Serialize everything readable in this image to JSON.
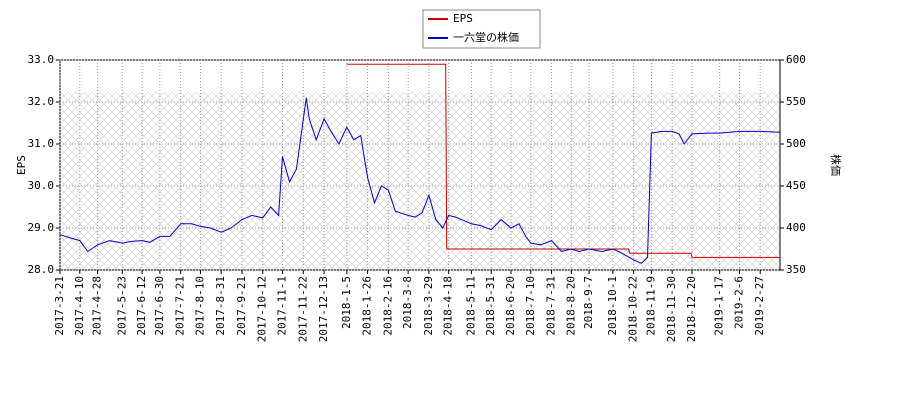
{
  "chart_data": {
    "type": "line",
    "ylabel": "EPS",
    "y2label": "株価",
    "xlim": [
      "2017-3-21",
      "2019-3-19"
    ],
    "xticks": [
      "2017-3-21",
      "2017-4-10",
      "2017-4-28",
      "2017-5-23",
      "2017-6-12",
      "2017-6-30",
      "2017-7-21",
      "2017-8-10",
      "2017-8-31",
      "2017-9-21",
      "2017-10-12",
      "2017-11-1",
      "2017-11-22",
      "2017-12-13",
      "2018-1-5",
      "2018-1-26",
      "2018-2-16",
      "2018-3-8",
      "2018-3-29",
      "2018-4-18",
      "2018-5-11",
      "2018-5-31",
      "2018-6-20",
      "2018-7-10",
      "2018-7-31",
      "2018-8-20",
      "2018-9-7",
      "2018-10-1",
      "2018-10-22",
      "2018-11-9",
      "2018-11-30",
      "2018-12-20",
      "2019-1-17",
      "2019-2-6",
      "2019-2-27"
    ],
    "ylim": [
      28.0,
      33.0
    ],
    "yticks": [
      {
        "value": 28,
        "label": "28.0"
      },
      {
        "value": 29,
        "label": "29.0"
      },
      {
        "value": 30,
        "label": "30.0"
      },
      {
        "value": 31,
        "label": "31.0"
      },
      {
        "value": 32,
        "label": "32.0"
      },
      {
        "value": 33,
        "label": "33.0"
      }
    ],
    "y2lim": [
      350,
      600
    ],
    "y2ticks": [
      350,
      400,
      450,
      500,
      550,
      600
    ],
    "grid": true,
    "legend": "top",
    "series": [
      {
        "name": "EPS",
        "color": "#cc0000",
        "axis": "y",
        "x": [
          "2018-1-5",
          "2018-4-15",
          "2018-4-16",
          "2018-10-17",
          "2018-10-18",
          "2018-12-19",
          "2018-12-20",
          "2019-3-19"
        ],
        "values": [
          32.9,
          32.9,
          28.5,
          28.5,
          28.4,
          28.4,
          28.3,
          28.3
        ]
      },
      {
        "name": "一六堂の株価",
        "color": "#0000cc",
        "axis": "y2",
        "x": [
          "2017-3-21",
          "2017-4-1",
          "2017-4-10",
          "2017-4-18",
          "2017-4-28",
          "2017-5-10",
          "2017-5-23",
          "2017-6-1",
          "2017-6-12",
          "2017-6-20",
          "2017-6-30",
          "2017-7-10",
          "2017-7-21",
          "2017-8-1",
          "2017-8-10",
          "2017-8-20",
          "2017-8-31",
          "2017-9-10",
          "2017-9-21",
          "2017-10-1",
          "2017-10-12",
          "2017-10-20",
          "2017-10-28",
          "2017-11-1",
          "2017-11-8",
          "2017-11-15",
          "2017-11-25",
          "2017-11-28",
          "2017-12-5",
          "2017-12-13",
          "2017-12-20",
          "2017-12-28",
          "2018-1-5",
          "2018-1-12",
          "2018-1-19",
          "2018-1-26",
          "2018-2-2",
          "2018-2-9",
          "2018-2-16",
          "2018-2-23",
          "2018-3-8",
          "2018-3-15",
          "2018-3-22",
          "2018-3-29",
          "2018-4-5",
          "2018-4-12",
          "2018-4-18",
          "2018-4-25",
          "2018-5-5",
          "2018-5-11",
          "2018-5-20",
          "2018-5-31",
          "2018-6-10",
          "2018-6-20",
          "2018-6-28",
          "2018-7-5",
          "2018-7-10",
          "2018-7-20",
          "2018-7-31",
          "2018-8-10",
          "2018-8-20",
          "2018-8-28",
          "2018-9-7",
          "2018-9-20",
          "2018-10-1",
          "2018-10-10",
          "2018-10-22",
          "2018-10-30",
          "2018-11-5",
          "2018-11-9",
          "2018-11-20",
          "2018-11-30",
          "2018-12-7",
          "2018-12-12",
          "2018-12-20",
          "2019-1-5",
          "2019-1-17",
          "2019-2-6",
          "2019-2-27",
          "2019-3-19"
        ],
        "values": [
          392,
          388,
          385,
          372,
          380,
          385,
          382,
          384,
          385,
          383,
          390,
          390,
          405,
          405,
          402,
          400,
          395,
          400,
          410,
          415,
          412,
          425,
          415,
          485,
          455,
          470,
          555,
          530,
          505,
          530,
          515,
          500,
          520,
          505,
          510,
          460,
          430,
          450,
          445,
          420,
          415,
          413,
          418,
          439,
          410,
          400,
          415,
          413,
          408,
          405,
          403,
          398,
          410,
          400,
          405,
          390,
          382,
          380,
          385,
          372,
          375,
          372,
          375,
          372,
          375,
          370,
          362,
          358,
          365,
          513,
          515,
          515,
          512,
          500,
          512,
          513,
          513,
          515,
          515,
          514
        ]
      }
    ]
  }
}
